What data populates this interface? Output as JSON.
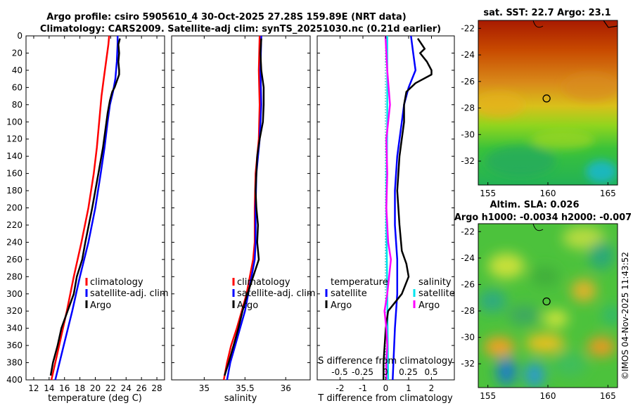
{
  "title_line1": "Argo profile: csiro 5905610_4 30-Oct-2025 27.28S 159.89E (NRT data)",
  "title_line2": "Climatology: CARS2009. Satellite-adj clim: synTS_20251030.nc (0.21d earlier)",
  "side_stamp": "©IMOS 04-Nov-2025 11:43:52",
  "colors": {
    "climatology": "#ff0000",
    "satellite": "#0000ff",
    "argo": "#000000",
    "salinity_sat": "#00e5ee",
    "salinity_diff": "#ff00ff"
  },
  "chart_data": [
    {
      "type": "line",
      "name": "temperature",
      "xlabel": "temperature (deg C)",
      "xlim": [
        11,
        29
      ],
      "xticks": [
        "12",
        "14",
        "16",
        "18",
        "20",
        "22",
        "24",
        "26",
        "28"
      ],
      "ylim": [
        400,
        0
      ],
      "yticks": [
        "0",
        "20",
        "40",
        "60",
        "80",
        "100",
        "120",
        "140",
        "160",
        "180",
        "200",
        "220",
        "240",
        "260",
        "280",
        "300",
        "320",
        "340",
        "360",
        "380",
        "400"
      ],
      "legend": [
        "climatology",
        "satellite-adj. clim",
        "Argo"
      ],
      "series": [
        {
          "name": "climatology",
          "depth": [
            0,
            10,
            30,
            50,
            70,
            100,
            130,
            160,
            200,
            240,
            280,
            320,
            360,
            400
          ],
          "values": [
            21.8,
            21.7,
            21.4,
            21.1,
            20.8,
            20.5,
            20.2,
            19.8,
            19.1,
            18.2,
            17.2,
            16.3,
            15.3,
            14.3
          ]
        },
        {
          "name": "satellite-adj. clim",
          "depth": [
            0,
            10,
            30,
            50,
            65,
            80,
            100,
            130,
            160,
            200,
            240,
            280,
            320,
            360,
            400
          ],
          "values": [
            22.9,
            22.9,
            22.8,
            22.6,
            22.3,
            21.9,
            21.6,
            21.2,
            20.7,
            20.0,
            19.1,
            18.0,
            17.0,
            15.9,
            14.8
          ]
        },
        {
          "name": "Argo",
          "depth": [
            3,
            10,
            20,
            30,
            40,
            45,
            60,
            65,
            75,
            90,
            110,
            130,
            160,
            200,
            240,
            260,
            280,
            300,
            320,
            340,
            360,
            380,
            395
          ],
          "values": [
            23.2,
            23.0,
            23.1,
            23.0,
            23.1,
            23.1,
            22.5,
            22.2,
            21.9,
            21.6,
            21.3,
            21.0,
            20.4,
            19.6,
            18.7,
            18.3,
            17.6,
            17.2,
            16.4,
            15.6,
            15.1,
            14.5,
            14.2
          ]
        }
      ]
    },
    {
      "type": "line",
      "name": "salinity",
      "xlabel": "salinity",
      "xlim": [
        34.6,
        36.3
      ],
      "xticks": [
        "35",
        "35.5",
        "36"
      ],
      "ylim": [
        400,
        0
      ],
      "legend": [
        "climatology",
        "satellite-adj. clim",
        "Argo"
      ],
      "series": [
        {
          "name": "climatology",
          "depth": [
            0,
            40,
            80,
            120,
            160,
            200,
            240,
            260,
            280,
            300,
            320,
            340,
            360,
            380,
            400
          ],
          "values": [
            35.68,
            35.67,
            35.68,
            35.67,
            35.63,
            35.62,
            35.62,
            35.6,
            35.56,
            35.52,
            35.46,
            35.4,
            35.33,
            35.28,
            35.24
          ]
        },
        {
          "name": "satellite-adj. clim",
          "depth": [
            0,
            40,
            80,
            120,
            160,
            200,
            240,
            260,
            280,
            300,
            320,
            340,
            360,
            380,
            400
          ],
          "values": [
            35.7,
            35.69,
            35.7,
            35.68,
            35.64,
            35.63,
            35.63,
            35.62,
            35.58,
            35.54,
            35.5,
            35.44,
            35.38,
            35.32,
            35.28
          ]
        },
        {
          "name": "Argo",
          "depth": [
            3,
            20,
            40,
            60,
            80,
            100,
            120,
            140,
            160,
            180,
            200,
            220,
            240,
            260,
            280,
            300,
            320,
            340,
            360,
            380,
            395
          ],
          "values": [
            35.7,
            35.69,
            35.7,
            35.73,
            35.73,
            35.72,
            35.68,
            35.65,
            35.64,
            35.63,
            35.64,
            35.66,
            35.65,
            35.67,
            35.6,
            35.53,
            35.47,
            35.42,
            35.36,
            35.3,
            35.25
          ]
        }
      ]
    },
    {
      "type": "line",
      "name": "difference",
      "xlabel": "T difference from climatology",
      "xlim": [
        -3,
        3
      ],
      "xticks": [
        "-2",
        "-1",
        "0",
        "1",
        "2"
      ],
      "top_label": "S difference from climatology",
      "top_ticks": [
        "-0.5",
        "-0.25",
        "0",
        "0.25",
        "0.5"
      ],
      "legend_temperature_title": "temperature",
      "legend_salinity_title": "salinity",
      "legend_temperature": [
        "satellite",
        "Argo"
      ],
      "legend_salinity": [
        "satellite",
        "Argo"
      ],
      "series": [
        {
          "name": "T satellite",
          "depth": [
            0,
            20,
            40,
            60,
            80,
            100,
            140,
            180,
            220,
            260,
            300,
            340,
            400
          ],
          "values": [
            1.1,
            1.2,
            1.3,
            1.0,
            0.8,
            0.7,
            0.5,
            0.4,
            0.4,
            0.5,
            0.5,
            0.4,
            0.3
          ]
        },
        {
          "name": "T Argo",
          "depth": [
            3,
            15,
            20,
            30,
            40,
            45,
            55,
            65,
            80,
            100,
            140,
            180,
            220,
            250,
            265,
            280,
            300,
            320,
            340,
            380,
            400
          ],
          "values": [
            1.4,
            1.7,
            1.5,
            1.8,
            2.0,
            2.0,
            1.3,
            0.9,
            0.8,
            0.8,
            0.6,
            0.5,
            0.6,
            0.7,
            0.9,
            1.0,
            0.7,
            0.1,
            0.0,
            -0.1,
            -0.1
          ]
        },
        {
          "name": "S satellite",
          "depth": [
            0,
            100,
            200,
            300,
            400
          ],
          "values": [
            0.02,
            0.02,
            0.01,
            0.02,
            0.03
          ]
        },
        {
          "name": "S Argo",
          "depth": [
            0,
            40,
            80,
            120,
            160,
            200,
            240,
            260,
            280,
            300,
            320,
            340,
            360,
            380,
            400
          ],
          "values": [
            0.0,
            0.02,
            0.05,
            0.01,
            0.02,
            0.01,
            0.03,
            0.06,
            0.04,
            0.02,
            -0.01,
            0.01,
            0.02,
            0.01,
            0.01
          ]
        }
      ]
    },
    {
      "type": "heatmap",
      "name": "sst-map",
      "title": "sat. SST: 22.7 Argo: 23.1",
      "xticks": [
        "155",
        "160",
        "165"
      ],
      "yticks": [
        "-22",
        "-24",
        "-26",
        "-28",
        "-30",
        "-32"
      ],
      "xlim": [
        154.2,
        165.8
      ],
      "ylim": [
        -33.8,
        -21.4
      ],
      "marker": {
        "lon": 159.89,
        "lat": -27.28
      }
    },
    {
      "type": "heatmap",
      "name": "sla-map",
      "title_line1": "Altim. SLA: 0.026",
      "title_line2": "Argo h1000: -0.0034 h2000: -0.007",
      "xticks": [
        "155",
        "160",
        "165"
      ],
      "yticks": [
        "-22",
        "-24",
        "-26",
        "-28",
        "-30",
        "-32"
      ],
      "xlim": [
        154.2,
        165.8
      ],
      "ylim": [
        -33.8,
        -21.4
      ],
      "marker": {
        "lon": 159.89,
        "lat": -27.28
      }
    }
  ]
}
